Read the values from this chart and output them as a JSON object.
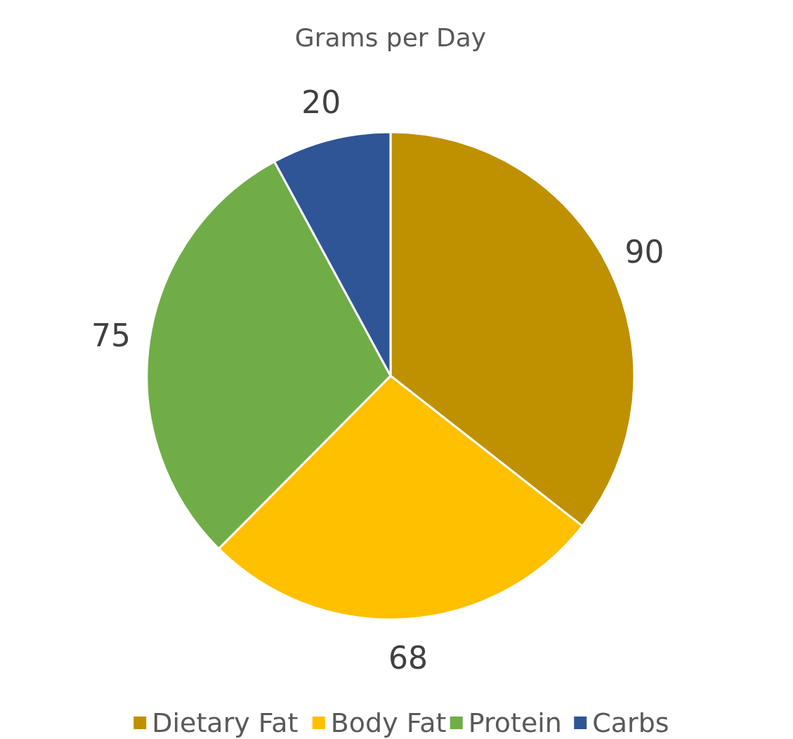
{
  "chart_data": {
    "type": "pie",
    "title": "Grams per Day",
    "categories": [
      "Dietary Fat",
      "Body Fat",
      "Protein",
      "Carbs"
    ],
    "values": [
      90,
      68,
      75,
      20
    ],
    "colors": [
      "#bf9000",
      "#ffc000",
      "#70ad47",
      "#2f5597"
    ],
    "data_labels": true,
    "legend": "bottom"
  }
}
